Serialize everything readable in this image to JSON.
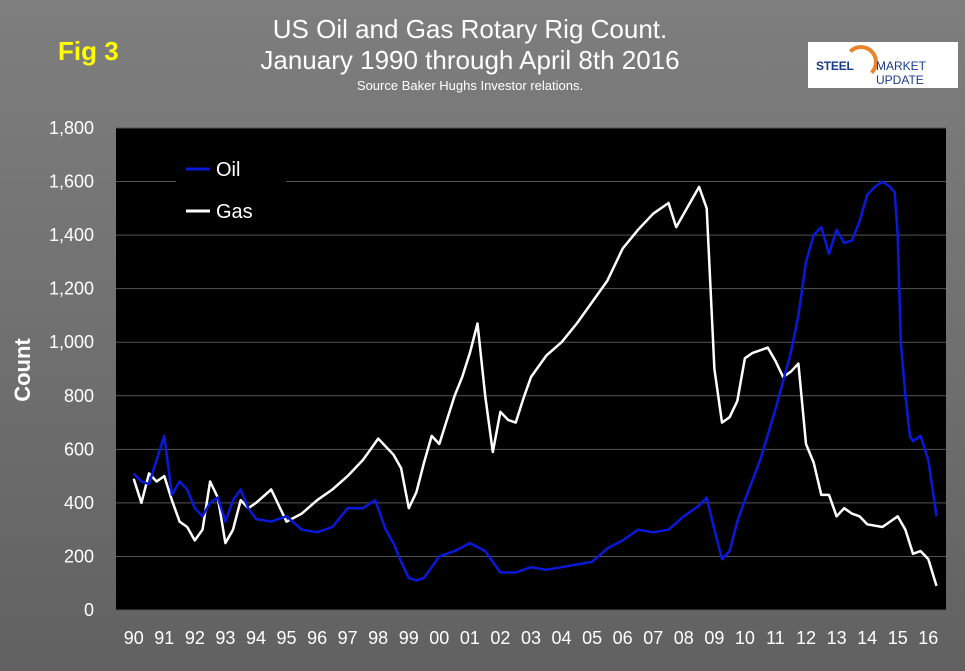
{
  "header": {
    "fig_label": "Fig 3",
    "title_line1": "US Oil and Gas Rotary Rig Count.",
    "title_line2": "January 1990 through April 8th 2016",
    "subtitle": "Source Baker Hughs Investor relations."
  },
  "logo": {
    "text_steel": "STEEL",
    "text_rest": "MARKET UPDATE"
  },
  "colors": {
    "oil": "#0a19d8",
    "gas": "#ffffff",
    "plot_bg": "#000000",
    "frame_bg": "#7a7a7a"
  },
  "chart_data": {
    "type": "line",
    "title": "US Oil and Gas Rotary Rig Count.",
    "subtitle": "January 1990 through April 8th 2016",
    "xlabel": "",
    "ylabel": "Count",
    "x_ticks": [
      "90",
      "91",
      "92",
      "93",
      "94",
      "95",
      "96",
      "97",
      "98",
      "99",
      "00",
      "01",
      "02",
      "03",
      "04",
      "05",
      "06",
      "07",
      "08",
      "09",
      "10",
      "11",
      "12",
      "13",
      "14",
      "15",
      "16"
    ],
    "ylim": [
      0,
      1800
    ],
    "y_ticks": [
      0,
      200,
      400,
      600,
      800,
      1000,
      1200,
      1400,
      1600,
      1800
    ],
    "y_tick_labels": [
      "0",
      "200",
      "400",
      "600",
      "800",
      "1,000",
      "1,200",
      "1,400",
      "1,600",
      "1,800"
    ],
    "legend_position": "top-left",
    "grid": true,
    "series": [
      {
        "name": "Oil",
        "x": [
          1990.0,
          1990.25,
          1990.5,
          1990.75,
          1991.0,
          1991.25,
          1991.5,
          1991.75,
          1992.0,
          1992.25,
          1992.5,
          1992.75,
          1993.0,
          1993.25,
          1993.5,
          1993.75,
          1994.0,
          1994.5,
          1995.0,
          1995.5,
          1996.0,
          1996.5,
          1997.0,
          1997.5,
          1997.9,
          1998.25,
          1998.5,
          1998.75,
          1999.0,
          1999.25,
          1999.5,
          1999.75,
          2000.0,
          2000.5,
          2001.0,
          2001.5,
          2002.0,
          2002.5,
          2003.0,
          2003.5,
          2004.0,
          2004.5,
          2005.0,
          2005.5,
          2006.0,
          2006.5,
          2007.0,
          2007.5,
          2008.0,
          2008.5,
          2008.75,
          2009.0,
          2009.25,
          2009.5,
          2009.75,
          2010.0,
          2010.5,
          2011.0,
          2011.5,
          2011.75,
          2012.0,
          2012.25,
          2012.5,
          2012.75,
          2013.0,
          2013.25,
          2013.5,
          2013.75,
          2014.0,
          2014.25,
          2014.5,
          2014.75,
          2014.9,
          2015.0,
          2015.1,
          2015.25,
          2015.4,
          2015.5,
          2015.75,
          2016.0,
          2016.27
        ],
        "values": [
          510,
          480,
          470,
          560,
          650,
          430,
          480,
          450,
          380,
          350,
          400,
          420,
          330,
          410,
          450,
          380,
          340,
          330,
          350,
          300,
          290,
          310,
          380,
          380,
          410,
          300,
          250,
          180,
          120,
          110,
          120,
          160,
          200,
          220,
          250,
          220,
          140,
          140,
          160,
          150,
          160,
          170,
          180,
          230,
          260,
          300,
          290,
          300,
          350,
          390,
          420,
          300,
          190,
          220,
          330,
          410,
          560,
          750,
          960,
          1100,
          1300,
          1400,
          1430,
          1330,
          1420,
          1370,
          1380,
          1450,
          1550,
          1580,
          1600,
          1580,
          1560,
          1400,
          1000,
          800,
          650,
          630,
          650,
          560,
          350
        ]
      },
      {
        "name": "Gas",
        "x": [
          1990.0,
          1990.25,
          1990.5,
          1990.75,
          1991.0,
          1991.25,
          1991.5,
          1991.75,
          1992.0,
          1992.25,
          1992.5,
          1992.75,
          1993.0,
          1993.25,
          1993.5,
          1993.75,
          1994.0,
          1994.5,
          1995.0,
          1995.5,
          1996.0,
          1996.5,
          1997.0,
          1997.5,
          1997.75,
          1998.0,
          1998.5,
          1998.75,
          1999.0,
          1999.25,
          1999.5,
          1999.75,
          2000.0,
          2000.5,
          2000.75,
          2001.0,
          2001.25,
          2001.5,
          2001.75,
          2002.0,
          2002.25,
          2002.5,
          2002.75,
          2003.0,
          2003.5,
          2004.0,
          2004.5,
          2005.0,
          2005.5,
          2006.0,
          2006.5,
          2007.0,
          2007.5,
          2007.75,
          2008.0,
          2008.5,
          2008.75,
          2009.0,
          2009.25,
          2009.5,
          2009.75,
          2010.0,
          2010.25,
          2010.5,
          2010.75,
          2011.0,
          2011.25,
          2011.5,
          2011.75,
          2012.0,
          2012.25,
          2012.5,
          2012.75,
          2013.0,
          2013.25,
          2013.5,
          2013.75,
          2014.0,
          2014.5,
          2014.75,
          2015.0,
          2015.25,
          2015.5,
          2015.75,
          2016.0,
          2016.27
        ],
        "values": [
          490,
          400,
          510,
          480,
          500,
          410,
          330,
          310,
          260,
          300,
          480,
          420,
          250,
          300,
          410,
          380,
          400,
          450,
          330,
          360,
          410,
          450,
          500,
          560,
          600,
          640,
          580,
          530,
          380,
          440,
          550,
          650,
          620,
          800,
          870,
          960,
          1070,
          800,
          590,
          740,
          710,
          700,
          790,
          870,
          950,
          1000,
          1070,
          1150,
          1230,
          1350,
          1420,
          1480,
          1520,
          1430,
          1480,
          1580,
          1500,
          900,
          700,
          720,
          780,
          940,
          960,
          970,
          980,
          930,
          870,
          890,
          920,
          620,
          550,
          430,
          430,
          350,
          380,
          360,
          350,
          320,
          310,
          330,
          350,
          300,
          210,
          220,
          190,
          90
        ]
      }
    ]
  }
}
